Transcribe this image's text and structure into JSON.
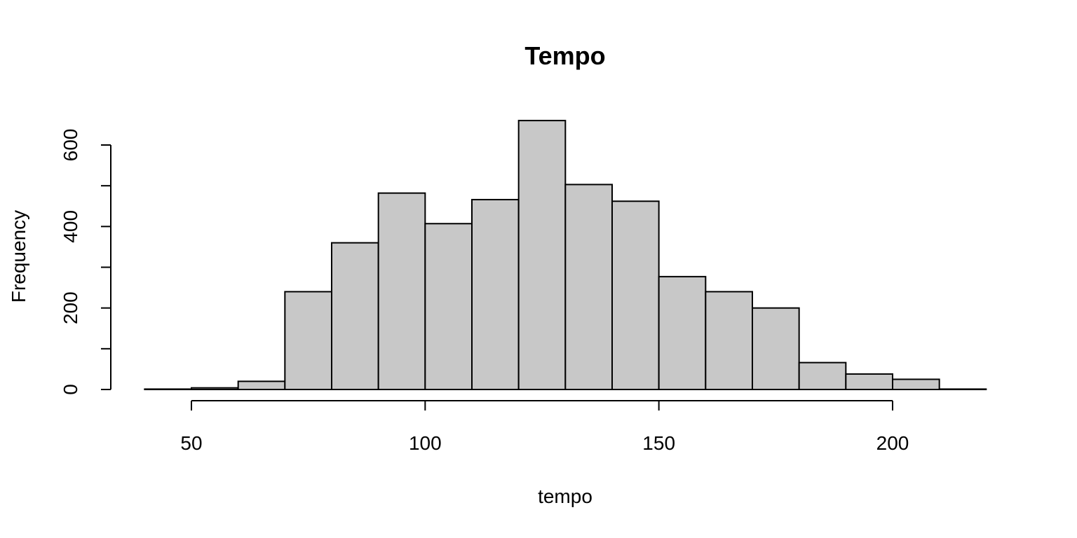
{
  "chart_data": {
    "type": "bar",
    "title": "Tempo",
    "xlabel": "tempo",
    "ylabel": "Frequency",
    "bin_edges": [
      40,
      50,
      60,
      70,
      80,
      90,
      100,
      110,
      120,
      130,
      140,
      150,
      160,
      170,
      180,
      190,
      200,
      210,
      220
    ],
    "values": [
      1,
      4,
      20,
      240,
      360,
      482,
      407,
      466,
      660,
      503,
      462,
      277,
      240,
      200,
      66,
      38,
      25,
      1
    ],
    "xlim": [
      50,
      200
    ],
    "ylim": [
      0,
      600
    ],
    "x_ticks": [
      50,
      100,
      150,
      200
    ],
    "x_tick_labels": [
      "50",
      "100",
      "150",
      "200"
    ],
    "y_ticks": [
      0,
      100,
      200,
      300,
      400,
      500,
      600
    ],
    "y_tick_labels": [
      "0",
      "",
      "200",
      "",
      "400",
      "",
      "600"
    ],
    "bar_fill": "#c8c8c8",
    "bar_stroke": "#000000",
    "grid": false,
    "legend": "none"
  }
}
